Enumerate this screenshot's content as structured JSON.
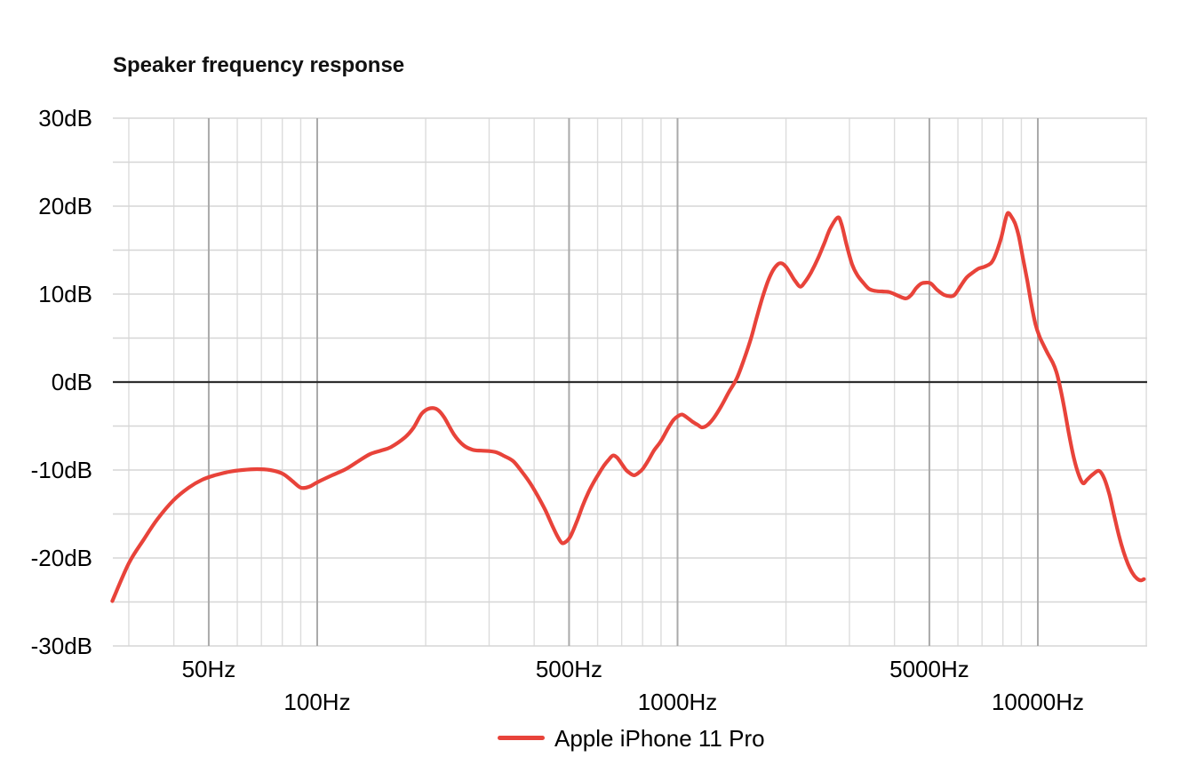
{
  "title": "Speaker frequency response",
  "legend": {
    "label": "Apple iPhone 11 Pro"
  },
  "colors": {
    "series": "#e8433a",
    "grid_minor": "#dcdcdc",
    "grid_major": "#aaaaaa",
    "grid_horizontal": "#d6d6d6",
    "zero_line": "#2e2e2e",
    "text": "#000000",
    "background": "#ffffff"
  },
  "y_axis": {
    "unit": "dB",
    "tick_labels": [
      {
        "db": 30,
        "label": "30dB"
      },
      {
        "db": 20,
        "label": "20dB"
      },
      {
        "db": 10,
        "label": "10dB"
      },
      {
        "db": 0,
        "label": "0dB"
      },
      {
        "db": -10,
        "label": "-10dB"
      },
      {
        "db": -20,
        "label": "-20dB"
      },
      {
        "db": -30,
        "label": "-30dB"
      }
    ]
  },
  "x_axis": {
    "unit": "Hz",
    "tick_labels": [
      {
        "freq": 50,
        "label": "50Hz",
        "row": 1
      },
      {
        "freq": 100,
        "label": "100Hz",
        "row": 2
      },
      {
        "freq": 500,
        "label": "500Hz",
        "row": 1
      },
      {
        "freq": 1000,
        "label": "1000Hz",
        "row": 2
      },
      {
        "freq": 5000,
        "label": "5000Hz",
        "row": 1
      },
      {
        "freq": 10000,
        "label": "10000Hz",
        "row": 2
      }
    ]
  },
  "chart_data": {
    "type": "line",
    "title": "Speaker frequency response",
    "x_scale": "log",
    "x_range_hz": [
      27,
      20100
    ],
    "y_range_db": [
      -30,
      30
    ],
    "grid": {
      "horizontal_step_db": 5,
      "vertical_minor_freqs": [
        30,
        40,
        60,
        70,
        80,
        90,
        200,
        300,
        400,
        600,
        700,
        800,
        900,
        2000,
        3000,
        4000,
        6000,
        7000,
        8000,
        9000,
        20000
      ],
      "vertical_major_freqs": [
        50,
        100,
        500,
        1000,
        5000,
        10000
      ]
    },
    "legend_position": "bottom-center",
    "series": [
      {
        "name": "Apple iPhone 11 Pro",
        "color": "#e8433a",
        "points_hz_db": [
          [
            27,
            -24.9
          ],
          [
            30,
            -20.6
          ],
          [
            33,
            -17.9
          ],
          [
            36,
            -15.6
          ],
          [
            40,
            -13.4
          ],
          [
            44,
            -12.0
          ],
          [
            48,
            -11.1
          ],
          [
            52,
            -10.6
          ],
          [
            57,
            -10.2
          ],
          [
            62,
            -10.0
          ],
          [
            68,
            -9.9
          ],
          [
            74,
            -10.0
          ],
          [
            80,
            -10.4
          ],
          [
            85,
            -11.2
          ],
          [
            90,
            -12.0
          ],
          [
            95,
            -11.9
          ],
          [
            100,
            -11.4
          ],
          [
            110,
            -10.6
          ],
          [
            120,
            -9.9
          ],
          [
            130,
            -9.0
          ],
          [
            140,
            -8.2
          ],
          [
            150,
            -7.8
          ],
          [
            160,
            -7.4
          ],
          [
            175,
            -6.3
          ],
          [
            185,
            -5.2
          ],
          [
            195,
            -3.6
          ],
          [
            205,
            -3.0
          ],
          [
            215,
            -3.1
          ],
          [
            225,
            -4.0
          ],
          [
            240,
            -6.0
          ],
          [
            255,
            -7.2
          ],
          [
            270,
            -7.7
          ],
          [
            285,
            -7.8
          ],
          [
            300,
            -7.85
          ],
          [
            315,
            -8.0
          ],
          [
            330,
            -8.4
          ],
          [
            350,
            -9.0
          ],
          [
            370,
            -10.2
          ],
          [
            390,
            -11.5
          ],
          [
            410,
            -13.0
          ],
          [
            430,
            -14.6
          ],
          [
            450,
            -16.4
          ],
          [
            465,
            -17.6
          ],
          [
            478,
            -18.3
          ],
          [
            492,
            -18.1
          ],
          [
            505,
            -17.5
          ],
          [
            525,
            -15.9
          ],
          [
            545,
            -14.1
          ],
          [
            565,
            -12.6
          ],
          [
            585,
            -11.4
          ],
          [
            605,
            -10.4
          ],
          [
            625,
            -9.5
          ],
          [
            645,
            -8.8
          ],
          [
            662,
            -8.35
          ],
          [
            680,
            -8.6
          ],
          [
            700,
            -9.3
          ],
          [
            720,
            -10.0
          ],
          [
            740,
            -10.4
          ],
          [
            758,
            -10.6
          ],
          [
            775,
            -10.4
          ],
          [
            800,
            -9.9
          ],
          [
            830,
            -8.9
          ],
          [
            860,
            -7.8
          ],
          [
            900,
            -6.7
          ],
          [
            940,
            -5.3
          ],
          [
            975,
            -4.3
          ],
          [
            1005,
            -3.85
          ],
          [
            1030,
            -3.7
          ],
          [
            1060,
            -4.0
          ],
          [
            1100,
            -4.5
          ],
          [
            1140,
            -4.9
          ],
          [
            1170,
            -5.15
          ],
          [
            1210,
            -4.9
          ],
          [
            1260,
            -4.1
          ],
          [
            1320,
            -2.8
          ],
          [
            1390,
            -1.1
          ],
          [
            1460,
            0.4
          ],
          [
            1530,
            2.6
          ],
          [
            1600,
            5.0
          ],
          [
            1660,
            7.4
          ],
          [
            1720,
            9.6
          ],
          [
            1780,
            11.4
          ],
          [
            1840,
            12.7
          ],
          [
            1900,
            13.4
          ],
          [
            1945,
            13.5
          ],
          [
            2000,
            13.1
          ],
          [
            2060,
            12.3
          ],
          [
            2120,
            11.5
          ],
          [
            2190,
            10.85
          ],
          [
            2260,
            11.4
          ],
          [
            2350,
            12.5
          ],
          [
            2450,
            14.0
          ],
          [
            2550,
            15.7
          ],
          [
            2650,
            17.4
          ],
          [
            2780,
            18.7
          ],
          [
            2850,
            18.0
          ],
          [
            2950,
            15.5
          ],
          [
            3050,
            13.4
          ],
          [
            3150,
            12.2
          ],
          [
            3260,
            11.4
          ],
          [
            3400,
            10.6
          ],
          [
            3550,
            10.35
          ],
          [
            3700,
            10.3
          ],
          [
            3850,
            10.25
          ],
          [
            3950,
            10.1
          ],
          [
            4100,
            9.8
          ],
          [
            4300,
            9.5
          ],
          [
            4450,
            9.9
          ],
          [
            4600,
            10.7
          ],
          [
            4750,
            11.2
          ],
          [
            4900,
            11.3
          ],
          [
            5050,
            11.2
          ],
          [
            5250,
            10.5
          ],
          [
            5500,
            9.9
          ],
          [
            5750,
            9.75
          ],
          [
            5900,
            10.0
          ],
          [
            6100,
            10.9
          ],
          [
            6350,
            11.9
          ],
          [
            6600,
            12.45
          ],
          [
            6850,
            12.9
          ],
          [
            7100,
            13.1
          ],
          [
            7400,
            13.5
          ],
          [
            7600,
            14.3
          ],
          [
            7900,
            16.3
          ],
          [
            8100,
            18.2
          ],
          [
            8250,
            19.2
          ],
          [
            8450,
            18.8
          ],
          [
            8650,
            18.0
          ],
          [
            8850,
            16.6
          ],
          [
            9100,
            14.0
          ],
          [
            9350,
            11.5
          ],
          [
            9600,
            8.8
          ],
          [
            9850,
            6.6
          ],
          [
            10100,
            5.2
          ],
          [
            10400,
            4.1
          ],
          [
            10700,
            3.1
          ],
          [
            11000,
            2.2
          ],
          [
            11250,
            1.2
          ],
          [
            11450,
            0.0
          ],
          [
            11800,
            -2.6
          ],
          [
            12200,
            -5.9
          ],
          [
            12600,
            -8.7
          ],
          [
            13000,
            -10.6
          ],
          [
            13350,
            -11.5
          ],
          [
            13700,
            -11.1
          ],
          [
            14200,
            -10.5
          ],
          [
            14800,
            -10.1
          ],
          [
            15300,
            -11.0
          ],
          [
            15800,
            -12.8
          ],
          [
            16300,
            -15.2
          ],
          [
            16800,
            -17.5
          ],
          [
            17300,
            -19.3
          ],
          [
            17800,
            -20.7
          ],
          [
            18300,
            -21.7
          ],
          [
            18800,
            -22.3
          ],
          [
            19300,
            -22.55
          ],
          [
            19700,
            -22.4
          ]
        ]
      }
    ]
  }
}
